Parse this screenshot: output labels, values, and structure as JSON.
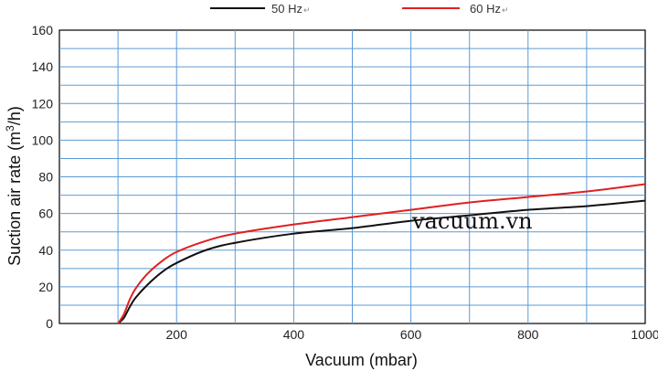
{
  "chart_data": {
    "type": "line",
    "xlabel": "Vacuum (mbar)",
    "ylabel_main": "Suction air rate (m",
    "ylabel_sup": "3",
    "ylabel_tail": "/h)",
    "xlim": [
      0,
      1000
    ],
    "ylim": [
      0,
      160
    ],
    "x_ticks": [
      200,
      400,
      600,
      800,
      1000
    ],
    "y_ticks": [
      0,
      20,
      40,
      60,
      80,
      100,
      120,
      140,
      160
    ],
    "x_grid": [
      100,
      200,
      300,
      400,
      500,
      600,
      700,
      800,
      900,
      1000
    ],
    "y_grid": [
      10,
      20,
      30,
      40,
      50,
      60,
      70,
      80,
      90,
      100,
      110,
      120,
      130,
      140,
      150,
      160
    ],
    "grid": true,
    "grid_color": "#5b9bd5",
    "legend_position": "top",
    "watermark": "vacuum.vn",
    "series": [
      {
        "name": "50 Hz",
        "legend_suffix": "↵",
        "color": "#111111",
        "x": [
          100,
          110,
          120,
          130,
          150,
          175,
          200,
          250,
          300,
          400,
          500,
          600,
          700,
          800,
          900,
          1000
        ],
        "y": [
          0,
          3,
          9,
          14,
          21,
          28,
          33,
          40,
          44,
          49,
          52,
          56,
          59,
          62,
          64,
          67
        ]
      },
      {
        "name": "60 Hz",
        "legend_suffix": "↵",
        "color": "#e02020",
        "x": [
          100,
          110,
          120,
          130,
          150,
          175,
          200,
          250,
          300,
          400,
          500,
          600,
          700,
          800,
          900,
          1000
        ],
        "y": [
          0,
          5,
          13,
          19,
          27,
          34,
          39,
          45,
          49,
          54,
          58,
          62,
          66,
          69,
          72,
          76
        ]
      }
    ]
  }
}
